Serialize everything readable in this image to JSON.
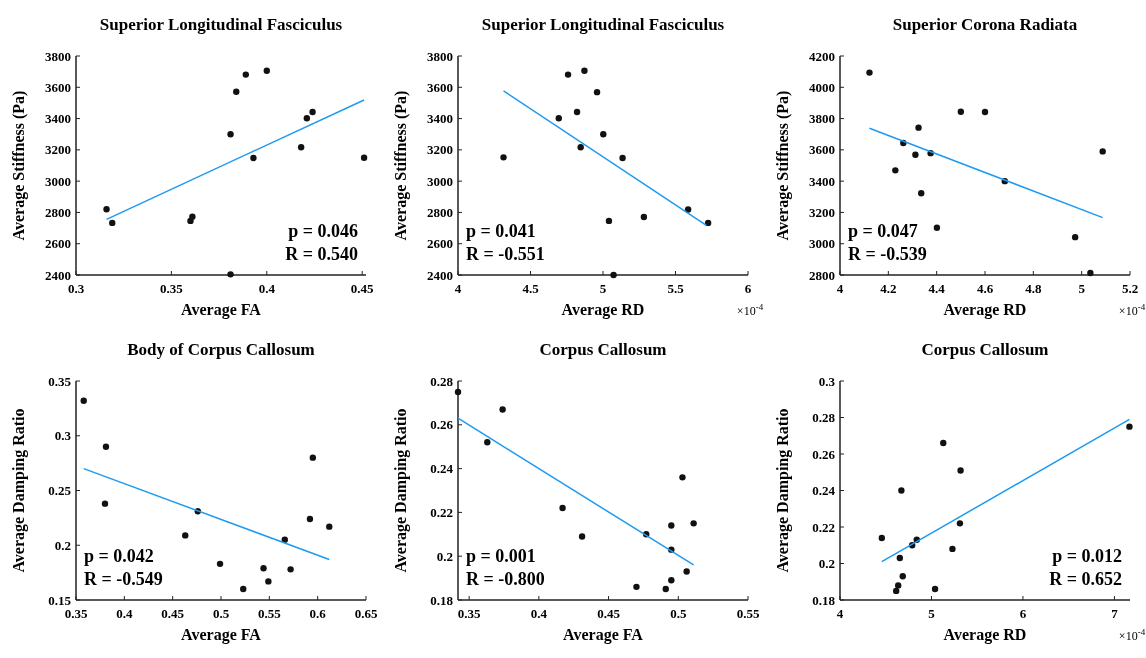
{
  "chart_data": [
    {
      "type": "scatter",
      "title": "Superior Longitudinal Fasciculus",
      "xlabel": "Average FA",
      "ylabel": "Average Stiffness (Pa)",
      "xlim": [
        0.3,
        0.452
      ],
      "xticks": [
        0.3,
        0.35,
        0.4,
        0.45
      ],
      "ylim": [
        2400,
        3800
      ],
      "yticks": [
        2400,
        2600,
        2800,
        3000,
        3200,
        3400,
        3600,
        3800
      ],
      "marker": "circle",
      "annotations": [
        "p = 0.046",
        "R = 0.540"
      ],
      "series": [
        {
          "color": "#111111",
          "x": [
            0.316,
            0.319,
            0.36,
            0.361,
            0.381,
            0.381,
            0.384,
            0.389,
            0.4,
            0.393,
            0.418,
            0.421,
            0.424,
            0.451
          ],
          "values": [
            2820,
            2733,
            2746,
            2773,
            3300,
            2404,
            3571,
            3681,
            3706,
            3148,
            3217,
            3402,
            3442,
            3150
          ]
        },
        {
          "type": "line",
          "marker": "none",
          "color": "#1e9af0",
          "x": [
            0.316,
            0.451
          ],
          "values": [
            2756,
            3519
          ]
        }
      ]
    },
    {
      "type": "scatter",
      "title": "Superior Longitudinal Fasciculus",
      "xlabel": "Average RD",
      "ylabel": "Average Stiffness (Pa)",
      "xlim": [
        4,
        6
      ],
      "xticks": [
        4,
        4.5,
        5,
        5.5,
        6
      ],
      "ylim": [
        2400,
        3800
      ],
      "yticks": [
        2400,
        2600,
        2800,
        3000,
        3200,
        3400,
        3600,
        3800
      ],
      "marker": "circle",
      "annotations": [
        "p = 0.041",
        "R = -0.551",
        "×10$^{-4}$"
      ],
      "series": [
        {
          "color": "#111111",
          "x": [
            4.314,
            4.695,
            4.759,
            4.821,
            4.872,
            4.846,
            4.959,
            5.002,
            5.041,
            5.073,
            5.135,
            5.282,
            5.587,
            5.725
          ],
          "values": [
            3152,
            3402,
            3681,
            3442,
            3706,
            3217,
            3569,
            3300,
            2746,
            2400,
            3148,
            2771,
            2819,
            2733
          ]
        },
        {
          "type": "line",
          "marker": "none",
          "color": "#1e9af0",
          "x": [
            4.314,
            5.713
          ],
          "values": [
            3577,
            2717
          ]
        }
      ]
    },
    {
      "type": "scatter",
      "title": "Superior Corona Radiata",
      "xlabel": "Average RD",
      "ylabel": "Average Stiffness (Pa)",
      "xlim": [
        4,
        5.2
      ],
      "xticks": [
        4,
        4.2,
        4.4,
        4.6,
        4.8,
        5,
        5.2
      ],
      "ylim": [
        2800,
        4200
      ],
      "yticks": [
        2800,
        3000,
        3200,
        3400,
        3600,
        3800,
        4000,
        4200
      ],
      "marker": "circle",
      "annotations": [
        "p = 0.047",
        "R = -0.539",
        "×10$^{-4}$"
      ],
      "series": [
        {
          "color": "#111111",
          "x": [
            4.122,
            4.229,
            4.262,
            4.312,
            4.325,
            4.336,
            4.375,
            4.401,
            4.5,
            4.6,
            4.682,
            4.973,
            5.036,
            5.087
          ],
          "values": [
            4094,
            3469,
            3644,
            3569,
            3742,
            3323,
            3579,
            3102,
            3844,
            3842,
            3400,
            3042,
            2813,
            3590
          ]
        },
        {
          "type": "line",
          "marker": "none",
          "color": "#1e9af0",
          "x": [
            4.122,
            5.087
          ],
          "values": [
            3738,
            3167
          ]
        }
      ]
    },
    {
      "type": "scatter",
      "title": "Body of Corpus Callosum",
      "xlabel": "Average FA",
      "ylabel": "Average Damping Ratio",
      "xlim": [
        0.35,
        0.65
      ],
      "xticks": [
        0.35,
        0.4,
        0.45,
        0.5,
        0.55,
        0.6,
        0.65
      ],
      "ylim": [
        0.15,
        0.35
      ],
      "yticks": [
        0.15,
        0.2,
        0.25,
        0.3,
        0.35
      ],
      "marker": "circle",
      "annotations": [
        "p = 0.042",
        "R = -0.549"
      ],
      "series": [
        {
          "color": "#111111",
          "x": [
            0.358,
            0.381,
            0.38,
            0.463,
            0.476,
            0.499,
            0.523,
            0.544,
            0.549,
            0.566,
            0.572,
            0.592,
            0.595,
            0.612
          ],
          "values": [
            0.332,
            0.29,
            0.238,
            0.209,
            0.231,
            0.183,
            0.16,
            0.179,
            0.167,
            0.205,
            0.178,
            0.224,
            0.28,
            0.217
          ]
        },
        {
          "type": "line",
          "marker": "none",
          "color": "#1e9af0",
          "x": [
            0.358,
            0.612
          ],
          "values": [
            0.27,
            0.187
          ]
        }
      ]
    },
    {
      "type": "scatter",
      "title": "Corpus Callosum",
      "xlabel": "Average FA",
      "ylabel": "Average Damping Ratio",
      "xlim": [
        0.342,
        0.55
      ],
      "xticks": [
        0.35,
        0.4,
        0.45,
        0.5,
        0.55
      ],
      "ylim": [
        0.18,
        0.28
      ],
      "yticks": [
        0.18,
        0.2,
        0.22,
        0.24,
        0.26,
        0.28
      ],
      "marker": "circle",
      "annotations": [
        "p = 0.001",
        "R = -0.800"
      ],
      "series": [
        {
          "color": "#111111",
          "x": [
            0.342,
            0.363,
            0.374,
            0.417,
            0.431,
            0.47,
            0.477,
            0.491,
            0.495,
            0.495,
            0.495,
            0.503,
            0.506,
            0.511
          ],
          "values": [
            0.275,
            0.252,
            0.267,
            0.222,
            0.209,
            0.186,
            0.21,
            0.185,
            0.214,
            0.203,
            0.189,
            0.236,
            0.193,
            0.215
          ]
        },
        {
          "type": "line",
          "marker": "none",
          "color": "#1e9af0",
          "x": [
            0.342,
            0.511
          ],
          "values": [
            0.263,
            0.196
          ]
        }
      ]
    },
    {
      "type": "scatter",
      "title": "Corpus Callosum",
      "xlabel": "Average RD",
      "ylabel": "Average Damping Ratio",
      "xlim": [
        4,
        7.17
      ],
      "xticks": [
        4,
        5,
        6,
        7
      ],
      "ylim": [
        0.18,
        0.3
      ],
      "yticks": [
        0.18,
        0.2,
        0.22,
        0.24,
        0.26,
        0.28,
        0.3
      ],
      "marker": "circle",
      "annotations": [
        "p = 0.012",
        "R = 0.652",
        "×10$^{-4}$"
      ],
      "series": [
        {
          "color": "#111111",
          "x": [
            4.457,
            4.614,
            4.636,
            4.654,
            4.671,
            4.686,
            4.789,
            4.839,
            5.039,
            5.129,
            5.229,
            5.311,
            5.318,
            7.164
          ],
          "values": [
            0.214,
            0.185,
            0.188,
            0.203,
            0.24,
            0.193,
            0.21,
            0.213,
            0.186,
            0.266,
            0.208,
            0.222,
            0.251,
            0.275
          ]
        },
        {
          "type": "line",
          "marker": "none",
          "color": "#1e9af0",
          "x": [
            4.457,
            7.164
          ],
          "values": [
            0.201,
            0.279
          ]
        }
      ]
    }
  ]
}
